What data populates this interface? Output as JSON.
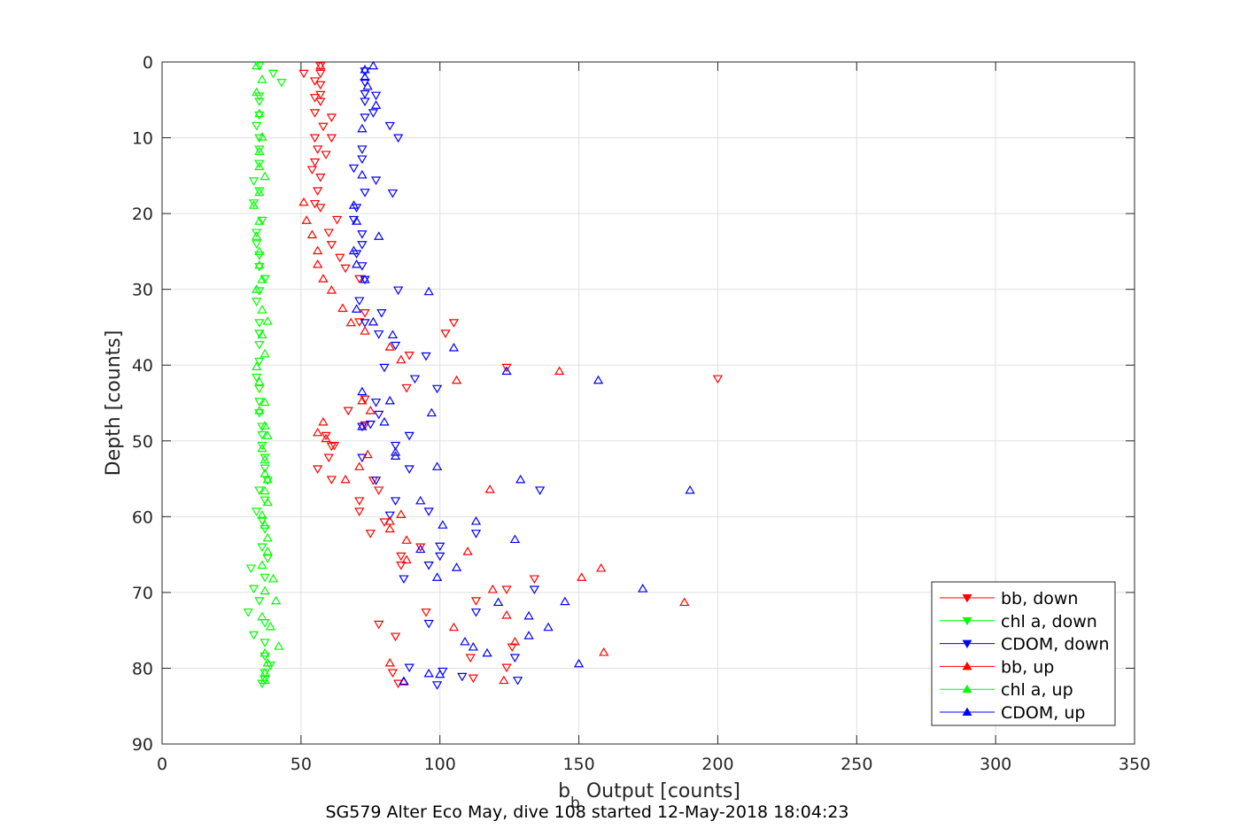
{
  "chart_data": {
    "type": "scatter",
    "xlabel_main": "b",
    "xlabel_sub": "b",
    "xlabel_rest": " Output [counts]",
    "ylabel": "Depth [counts]",
    "caption": "SG579 Alter Eco May, dive 108 started 12-May-2018 18:04:23",
    "xlim": [
      0,
      350
    ],
    "ylim": [
      0,
      90
    ],
    "y_reversed": true,
    "grid": true,
    "legend_position": "bottom-right",
    "x_ticks": [
      "0",
      "50",
      "100",
      "150",
      "200",
      "250",
      "300",
      "350"
    ],
    "y_ticks": [
      "0",
      "10",
      "20",
      "30",
      "40",
      "50",
      "60",
      "70",
      "80",
      "90"
    ],
    "series": [
      {
        "name": "bb, down",
        "color": "#ff0000",
        "marker": "triangle-down",
        "points": [
          [
            57,
            0.5
          ],
          [
            57,
            1.5
          ],
          [
            51,
            1.5
          ],
          [
            55,
            2.5
          ],
          [
            57,
            3
          ],
          [
            57,
            4.3
          ],
          [
            55,
            4.7
          ],
          [
            57,
            5.2
          ],
          [
            61,
            7.3
          ],
          [
            55,
            6.7
          ],
          [
            58,
            8.5
          ],
          [
            61,
            10
          ],
          [
            55,
            10
          ],
          [
            56,
            11.5
          ],
          [
            59,
            12.2
          ],
          [
            55,
            13.2
          ],
          [
            54,
            14.2
          ],
          [
            57,
            15.2
          ],
          [
            56,
            17
          ],
          [
            55,
            18.7
          ],
          [
            57,
            19.2
          ],
          [
            63,
            20.8
          ],
          [
            60,
            22.5
          ],
          [
            61,
            24.1
          ],
          [
            64,
            25.8
          ],
          [
            66,
            27.2
          ],
          [
            71,
            28.6
          ],
          [
            73,
            33.1
          ],
          [
            71,
            34.3
          ],
          [
            105,
            34.4
          ],
          [
            102,
            35.8
          ],
          [
            89,
            38.7
          ],
          [
            124,
            40.3
          ],
          [
            200,
            41.8
          ],
          [
            88,
            43
          ],
          [
            73,
            44.5
          ],
          [
            67,
            46
          ],
          [
            73,
            47.9
          ],
          [
            59,
            49.3
          ],
          [
            62,
            50.6
          ],
          [
            61,
            50.7
          ],
          [
            60,
            52.2
          ],
          [
            56,
            53.7
          ],
          [
            61,
            55.1
          ],
          [
            76,
            55.2
          ],
          [
            78,
            56.5
          ],
          [
            71,
            57.9
          ],
          [
            71,
            59.3
          ],
          [
            80,
            60.7
          ],
          [
            75,
            62.2
          ],
          [
            93,
            64
          ],
          [
            86,
            65.2
          ],
          [
            86,
            66.4
          ],
          [
            134,
            68.2
          ],
          [
            124,
            69.6
          ],
          [
            113,
            71.1
          ],
          [
            95,
            72.6
          ],
          [
            78,
            74.2
          ],
          [
            84,
            75.8
          ],
          [
            126,
            77.2
          ],
          [
            111,
            78.6
          ],
          [
            124,
            79.9
          ],
          [
            83,
            80.6
          ],
          [
            112,
            81.3
          ],
          [
            85,
            82
          ]
        ]
      },
      {
        "name": "chl a, down",
        "color": "#00ff00",
        "marker": "triangle-down",
        "points": [
          [
            35,
            0.5
          ],
          [
            40,
            1.5
          ],
          [
            43,
            2.7
          ],
          [
            35,
            4.5
          ],
          [
            35,
            5.2
          ],
          [
            35,
            7
          ],
          [
            34,
            8.4
          ],
          [
            35,
            10
          ],
          [
            35,
            11.5
          ],
          [
            35,
            13.4
          ],
          [
            33,
            15.7
          ],
          [
            35,
            17
          ],
          [
            33,
            18.6
          ],
          [
            36,
            20.9
          ],
          [
            34,
            22.5
          ],
          [
            34,
            24
          ],
          [
            35,
            25.5
          ],
          [
            35,
            27
          ],
          [
            37,
            28.6
          ],
          [
            35,
            30.2
          ],
          [
            34,
            31.6
          ],
          [
            35,
            34.4
          ],
          [
            35,
            35.8
          ],
          [
            35,
            37.3
          ],
          [
            35,
            39.5
          ],
          [
            34,
            41.6
          ],
          [
            35,
            43.1
          ],
          [
            35,
            44.8
          ],
          [
            35,
            46.3
          ],
          [
            36,
            48.1
          ],
          [
            36,
            49.2
          ],
          [
            36,
            50.6
          ],
          [
            37,
            52.2
          ],
          [
            37,
            53.6
          ],
          [
            38,
            55.2
          ],
          [
            35,
            56.5
          ],
          [
            37,
            57.8
          ],
          [
            34,
            59.3
          ],
          [
            36,
            60.5
          ],
          [
            37,
            61.6
          ],
          [
            36,
            64
          ],
          [
            38,
            65.5
          ],
          [
            32,
            66.8
          ],
          [
            37,
            68
          ],
          [
            33,
            69.5
          ],
          [
            35,
            71.1
          ],
          [
            31,
            72.6
          ],
          [
            37,
            74
          ],
          [
            33,
            75.6
          ],
          [
            37,
            76.6
          ],
          [
            37,
            78.4
          ],
          [
            39,
            79.6
          ],
          [
            37,
            80.6
          ],
          [
            37,
            81.5
          ],
          [
            36,
            82
          ]
        ]
      },
      {
        "name": "CDOM, down",
        "color": "#0000ff",
        "marker": "triangle-down",
        "points": [
          [
            73,
            1.2
          ],
          [
            73,
            2.7
          ],
          [
            73,
            4.2
          ],
          [
            77,
            4.4
          ],
          [
            73,
            5.2
          ],
          [
            76,
            6.7
          ],
          [
            73,
            7.3
          ],
          [
            82,
            8.4
          ],
          [
            85,
            10
          ],
          [
            72,
            11.5
          ],
          [
            72,
            12.8
          ],
          [
            69,
            14
          ],
          [
            77,
            15.6
          ],
          [
            73,
            17.2
          ],
          [
            83,
            17.3
          ],
          [
            70,
            19.2
          ],
          [
            69,
            20.8
          ],
          [
            72,
            22.7
          ],
          [
            72,
            24.1
          ],
          [
            70,
            25.3
          ],
          [
            72,
            26.9
          ],
          [
            73,
            28.7
          ],
          [
            85,
            30.1
          ],
          [
            71,
            31.5
          ],
          [
            79,
            33.1
          ],
          [
            73,
            34.4
          ],
          [
            78,
            35.9
          ],
          [
            84,
            37.4
          ],
          [
            95,
            38.8
          ],
          [
            80,
            40.3
          ],
          [
            91,
            41.8
          ],
          [
            99,
            43.1
          ],
          [
            77,
            44.9
          ],
          [
            78,
            46.5
          ],
          [
            75,
            47.8
          ],
          [
            72,
            48.1
          ],
          [
            89,
            49.3
          ],
          [
            84,
            50.6
          ],
          [
            72,
            52.2
          ],
          [
            89,
            53.7
          ],
          [
            77,
            55.2
          ],
          [
            136,
            56.5
          ],
          [
            84,
            57.9
          ],
          [
            96,
            59.3
          ],
          [
            82,
            59.8
          ],
          [
            113,
            62.2
          ],
          [
            100,
            63.9
          ],
          [
            100,
            65.2
          ],
          [
            96,
            66.4
          ],
          [
            87,
            68.2
          ],
          [
            134,
            69.6
          ],
          [
            113,
            72.6
          ],
          [
            96,
            74.1
          ],
          [
            127,
            78.6
          ],
          [
            89,
            79.9
          ],
          [
            101,
            80.4
          ],
          [
            108,
            81.1
          ],
          [
            128,
            81.6
          ],
          [
            99,
            82.2
          ]
        ]
      },
      {
        "name": "bb, up",
        "color": "#ff0000",
        "marker": "triangle-up",
        "points": [
          [
            57,
            0.5
          ],
          [
            51,
            18.5
          ],
          [
            52,
            20.9
          ],
          [
            54,
            22.8
          ],
          [
            56,
            24.9
          ],
          [
            56,
            26.7
          ],
          [
            58,
            28.6
          ],
          [
            61,
            30.1
          ],
          [
            65,
            32.5
          ],
          [
            68,
            34.4
          ],
          [
            73,
            35.5
          ],
          [
            82,
            37.6
          ],
          [
            86,
            39.3
          ],
          [
            143,
            40.8
          ],
          [
            106,
            42
          ],
          [
            72,
            44.7
          ],
          [
            75,
            46
          ],
          [
            58,
            47.5
          ],
          [
            56,
            48.9
          ],
          [
            59,
            49.7
          ],
          [
            74,
            51.8
          ],
          [
            71,
            53.4
          ],
          [
            66,
            55.1
          ],
          [
            118,
            56.4
          ],
          [
            86,
            59.7
          ],
          [
            82,
            60.6
          ],
          [
            82,
            61.6
          ],
          [
            88,
            63.1
          ],
          [
            110,
            64.6
          ],
          [
            88,
            65.7
          ],
          [
            158,
            66.8
          ],
          [
            151,
            68
          ],
          [
            119,
            69.6
          ],
          [
            188,
            71.3
          ],
          [
            124,
            73
          ],
          [
            105,
            74.6
          ],
          [
            127,
            76.5
          ],
          [
            159,
            77.9
          ],
          [
            82,
            79.3
          ],
          [
            123,
            81.6
          ],
          [
            87,
            81.8
          ]
        ]
      },
      {
        "name": "chl a, up",
        "color": "#00ff00",
        "marker": "triangle-up",
        "points": [
          [
            34,
            0.5
          ],
          [
            36,
            2.3
          ],
          [
            34,
            4
          ],
          [
            35,
            6.8
          ],
          [
            36,
            9.9
          ],
          [
            35,
            11.8
          ],
          [
            35,
            13.8
          ],
          [
            37,
            15.1
          ],
          [
            35,
            17.2
          ],
          [
            33,
            18.9
          ],
          [
            35,
            21
          ],
          [
            34,
            23
          ],
          [
            35,
            25
          ],
          [
            35,
            26.8
          ],
          [
            36,
            28.7
          ],
          [
            34,
            30
          ],
          [
            36,
            32.7
          ],
          [
            38,
            34.2
          ],
          [
            36,
            36
          ],
          [
            37,
            38.5
          ],
          [
            34,
            40.2
          ],
          [
            35,
            42.2
          ],
          [
            37,
            44.9
          ],
          [
            35,
            46
          ],
          [
            37,
            48
          ],
          [
            38,
            49.3
          ],
          [
            36,
            51
          ],
          [
            37,
            52.5
          ],
          [
            37,
            54.3
          ],
          [
            38,
            55.1
          ],
          [
            37,
            56.6
          ],
          [
            38,
            58.1
          ],
          [
            36,
            59.8
          ],
          [
            37,
            61.1
          ],
          [
            38,
            62.8
          ],
          [
            38,
            64.6
          ],
          [
            36,
            66.4
          ],
          [
            40,
            68.2
          ],
          [
            37,
            69.8
          ],
          [
            41,
            71.1
          ],
          [
            36,
            73.2
          ],
          [
            39,
            74.5
          ],
          [
            42,
            77.1
          ],
          [
            37,
            78
          ],
          [
            38,
            79.3
          ],
          [
            37,
            80.6
          ],
          [
            37,
            81.6
          ]
        ]
      },
      {
        "name": "CDOM, up",
        "color": "#0000ff",
        "marker": "triangle-up",
        "points": [
          [
            76,
            0.5
          ],
          [
            73,
            1
          ],
          [
            73,
            2
          ],
          [
            74,
            3.2
          ],
          [
            77,
            5.7
          ],
          [
            72,
            8.8
          ],
          [
            72,
            14.9
          ],
          [
            69,
            18.9
          ],
          [
            70,
            21
          ],
          [
            78,
            23
          ],
          [
            69,
            24.9
          ],
          [
            70,
            26.7
          ],
          [
            73,
            28.7
          ],
          [
            96,
            30.3
          ],
          [
            70,
            32.6
          ],
          [
            76,
            34.3
          ],
          [
            83,
            36
          ],
          [
            105,
            37.7
          ],
          [
            124,
            40.8
          ],
          [
            157,
            42
          ],
          [
            72,
            43.5
          ],
          [
            82,
            44.7
          ],
          [
            97,
            46.3
          ],
          [
            80,
            47.5
          ],
          [
            72,
            48.1
          ],
          [
            84,
            51.5
          ],
          [
            84,
            52
          ],
          [
            99,
            53.4
          ],
          [
            129,
            55.1
          ],
          [
            190,
            56.5
          ],
          [
            93,
            57.9
          ],
          [
            113,
            60.6
          ],
          [
            101,
            61.1
          ],
          [
            127,
            63
          ],
          [
            93,
            64.3
          ],
          [
            106,
            66.7
          ],
          [
            99,
            68
          ],
          [
            173,
            69.5
          ],
          [
            145,
            71.2
          ],
          [
            121,
            71.3
          ],
          [
            132,
            73.1
          ],
          [
            139,
            74.6
          ],
          [
            132,
            75.7
          ],
          [
            109,
            76.5
          ],
          [
            112,
            77.2
          ],
          [
            117,
            78
          ],
          [
            150,
            79.4
          ],
          [
            96,
            80.7
          ],
          [
            100,
            80.8
          ],
          [
            87,
            81.7
          ]
        ]
      }
    ]
  }
}
